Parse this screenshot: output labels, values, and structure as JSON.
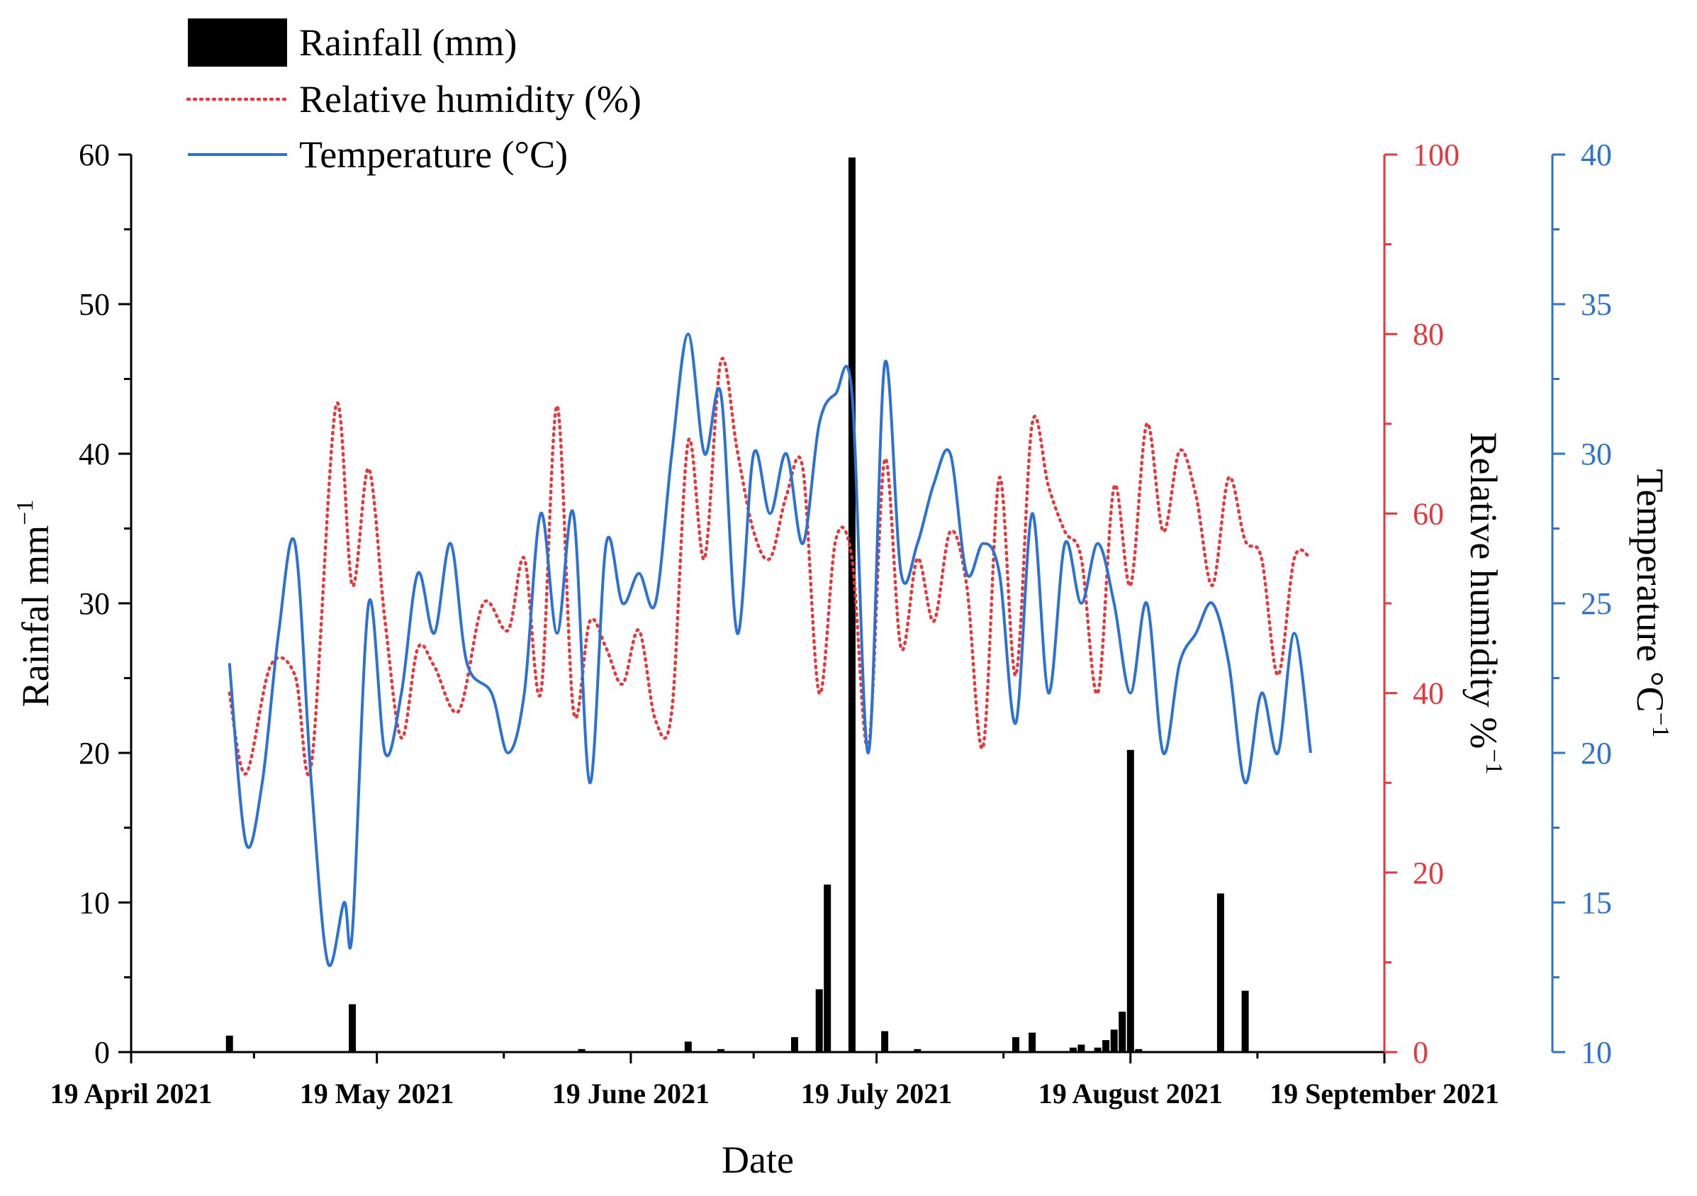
{
  "chart_data": {
    "type": "bar+line",
    "title": "",
    "xlabel": "Date",
    "x_ticks": [
      "19 April 2021",
      "19 May 2021",
      "19 June 2021",
      "19 July 2021",
      "19 August 2021",
      "19 September 2021"
    ],
    "x_range_days": [
      0,
      153
    ],
    "axes": {
      "rainfall": {
        "label_main": "Rainfal mm",
        "label_sup": "−1",
        "ylim": [
          0,
          60
        ],
        "ticks": [
          0,
          10,
          20,
          30,
          40,
          50,
          60
        ],
        "color": "#000000"
      },
      "humidity": {
        "label_main": "Relative humidity %",
        "label_sup": "−1",
        "ylim": [
          0,
          100
        ],
        "ticks": [
          0,
          20,
          40,
          60,
          80,
          100
        ],
        "color": "#e8363b"
      },
      "temperature": {
        "label_main": "Temperature °C",
        "label_sup": "−1",
        "ylim": [
          10,
          40
        ],
        "ticks": [
          10,
          15,
          20,
          25,
          30,
          35,
          40
        ],
        "color": "#2b72d2"
      }
    },
    "legend": {
      "position": "top-left",
      "items": [
        {
          "label": "Rainfall (mm)",
          "style": "bar",
          "color": "#000000"
        },
        {
          "label": "Relative humidity (%)",
          "style": "dotted",
          "color": "#e8363b"
        },
        {
          "label": "Temperature (°C)",
          "style": "solid",
          "color": "#2b72d2"
        }
      ]
    },
    "series": [
      {
        "name": "Rainfall (mm)",
        "kind": "bar",
        "day": [
          12,
          27,
          55,
          68,
          72,
          81,
          84,
          85,
          88,
          92,
          96,
          108,
          110,
          115,
          116,
          118,
          119,
          120,
          121,
          122,
          123,
          133,
          136
        ],
        "values": [
          1.1,
          3.2,
          0.2,
          0.7,
          0.2,
          1.0,
          4.2,
          11.2,
          59.8,
          1.4,
          0.2,
          1.0,
          1.3,
          0.3,
          0.5,
          0.3,
          0.8,
          1.5,
          2.7,
          20.2,
          0.2,
          10.6,
          4.1
        ]
      },
      {
        "name": "Relative humidity (%)",
        "kind": "line-dotted",
        "day": [
          12,
          14,
          17,
          20,
          22,
          25,
          27,
          29,
          31,
          33,
          35,
          37,
          40,
          43,
          46,
          48,
          50,
          52,
          54,
          56,
          58,
          60,
          62,
          64,
          66,
          68,
          70,
          72,
          74,
          76,
          78,
          80,
          82,
          84,
          86,
          88,
          90,
          92,
          94,
          96,
          98,
          100,
          102,
          104,
          106,
          108,
          110,
          112,
          114,
          116,
          118,
          120,
          122,
          124,
          126,
          128,
          130,
          132,
          134,
          136,
          138,
          140,
          142,
          144
        ],
        "values": [
          40,
          31,
          43,
          42,
          32,
          72,
          52,
          65,
          48,
          35,
          45,
          43,
          38,
          50,
          47,
          55,
          40,
          72,
          38,
          48,
          45,
          41,
          47,
          37,
          38,
          68,
          55,
          77,
          67,
          58,
          55,
          62,
          65,
          40,
          57,
          55,
          34,
          66,
          45,
          55,
          48,
          58,
          52,
          34,
          64,
          42,
          70,
          63,
          58,
          55,
          40,
          63,
          52,
          70,
          58,
          67,
          62,
          52,
          64,
          57,
          55,
          42,
          55,
          55
        ]
      },
      {
        "name": "Temperature (°C)",
        "kind": "line-solid",
        "day": [
          12,
          14,
          16,
          18,
          20,
          22,
          24,
          26,
          27,
          29,
          31,
          33,
          35,
          37,
          39,
          41,
          44,
          46,
          48,
          50,
          52,
          54,
          56,
          58,
          60,
          62,
          64,
          66,
          68,
          70,
          72,
          74,
          76,
          78,
          80,
          82,
          84,
          86,
          88,
          90,
          92,
          94,
          96,
          98,
          100,
          102,
          104,
          106,
          108,
          110,
          112,
          114,
          116,
          118,
          120,
          122,
          124,
          126,
          128,
          130,
          132,
          134,
          136,
          138,
          140,
          142,
          144
        ],
        "values": [
          23.0,
          17.0,
          19.0,
          24.0,
          27.0,
          19.0,
          13.0,
          15.0,
          14.0,
          25.0,
          20.0,
          22.0,
          26.0,
          24.0,
          27.0,
          23.0,
          22.0,
          20.0,
          22.0,
          28.0,
          24.0,
          28.0,
          19.0,
          27.0,
          25.0,
          26.0,
          25.0,
          30.0,
          34.0,
          30.0,
          32.0,
          24.0,
          30.0,
          28.0,
          30.0,
          27.0,
          31.0,
          32.0,
          32.0,
          20.0,
          33.0,
          26.0,
          27.0,
          29.0,
          30.0,
          26.0,
          27.0,
          26.0,
          21.0,
          28.0,
          22.0,
          27.0,
          25.0,
          27.0,
          25.0,
          22.0,
          25.0,
          20.0,
          23.0,
          24.0,
          25.0,
          23.0,
          19.0,
          22.0,
          20.0,
          24.0,
          20.0
        ]
      }
    ]
  }
}
